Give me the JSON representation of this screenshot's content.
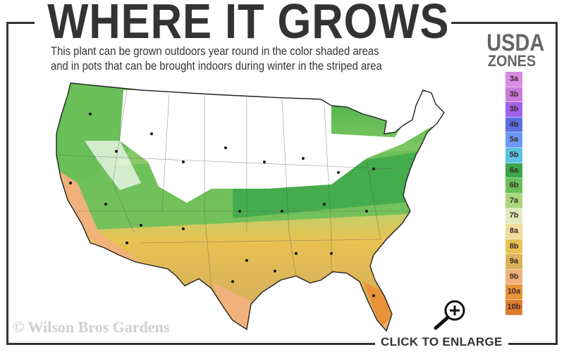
{
  "header": {
    "title": "WHERE IT GROWS",
    "subtitle_line1": "This plant can be grown outdoors year round in the color shaded areas",
    "subtitle_line2": "and in pots that can be brought indoors during winter in the striped area"
  },
  "legend": {
    "title_line1": "USDA",
    "title_line2": "ZONES",
    "zones": [
      {
        "label": "3a",
        "color": "#d98ae2"
      },
      {
        "label": "3b",
        "color": "#c97bd8"
      },
      {
        "label": "3b",
        "color": "#a062ea"
      },
      {
        "label": "4b",
        "color": "#5b70e2"
      },
      {
        "label": "5a",
        "color": "#6b9bf2"
      },
      {
        "label": "5b",
        "color": "#5bc3e2"
      },
      {
        "label": "6a",
        "color": "#3aa64a"
      },
      {
        "label": "6b",
        "color": "#6abf58"
      },
      {
        "label": "7a",
        "color": "#a9d87a"
      },
      {
        "label": "7b",
        "color": "#e0ecbb"
      },
      {
        "label": "8a",
        "color": "#f1dc9a"
      },
      {
        "label": "8b",
        "color": "#e8c252"
      },
      {
        "label": "9a",
        "color": "#d9b25a"
      },
      {
        "label": "9b",
        "color": "#f0b27a"
      },
      {
        "label": "10a",
        "color": "#e9923a"
      },
      {
        "label": "10b",
        "color": "#df7c30"
      }
    ]
  },
  "map": {
    "region": "Contiguous United States",
    "growing_zones_shown": [
      "6a",
      "6b",
      "7a",
      "7b",
      "8a",
      "8b",
      "9a",
      "9b",
      "10a",
      "10b"
    ]
  },
  "footer": {
    "watermark": "© Wilson Bros Gardens",
    "enlarge_label": "CLICK TO ENLARGE",
    "enlarge_icon": "zoom-in-magnifier-icon"
  }
}
